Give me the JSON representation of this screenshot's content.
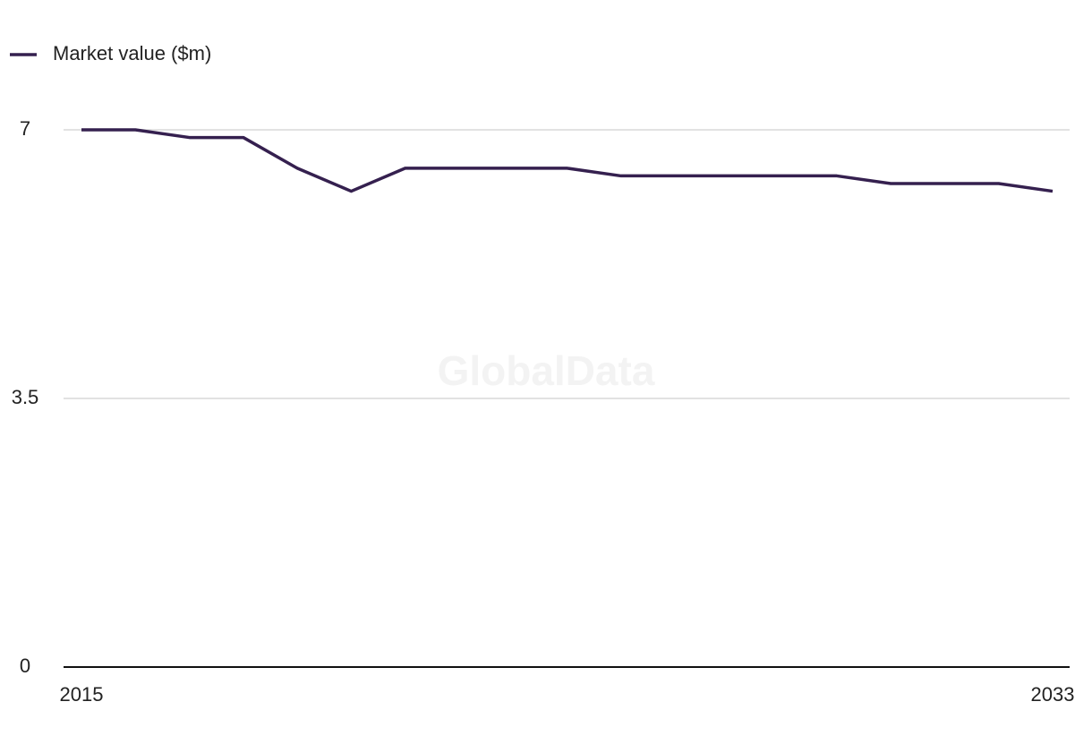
{
  "chart_data": {
    "type": "line",
    "watermark": "GlobalData",
    "x": [
      2015,
      2016,
      2017,
      2018,
      2019,
      2020,
      2021,
      2022,
      2023,
      2024,
      2025,
      2026,
      2027,
      2028,
      2029,
      2030,
      2031,
      2032,
      2033
    ],
    "series": [
      {
        "name": "Market value ($m)",
        "color": "#35204f",
        "values": [
          7.0,
          7.0,
          6.9,
          6.9,
          6.5,
          6.2,
          6.5,
          6.5,
          6.5,
          6.5,
          6.4,
          6.4,
          6.4,
          6.4,
          6.4,
          6.3,
          6.3,
          6.3,
          6.2
        ]
      }
    ],
    "xlim": [
      2015,
      2033
    ],
    "xticks": [
      2015,
      2033
    ],
    "ylim": [
      0,
      7
    ],
    "yticks": [
      0,
      3.5,
      7
    ],
    "grid": true,
    "legend": "top-left"
  }
}
